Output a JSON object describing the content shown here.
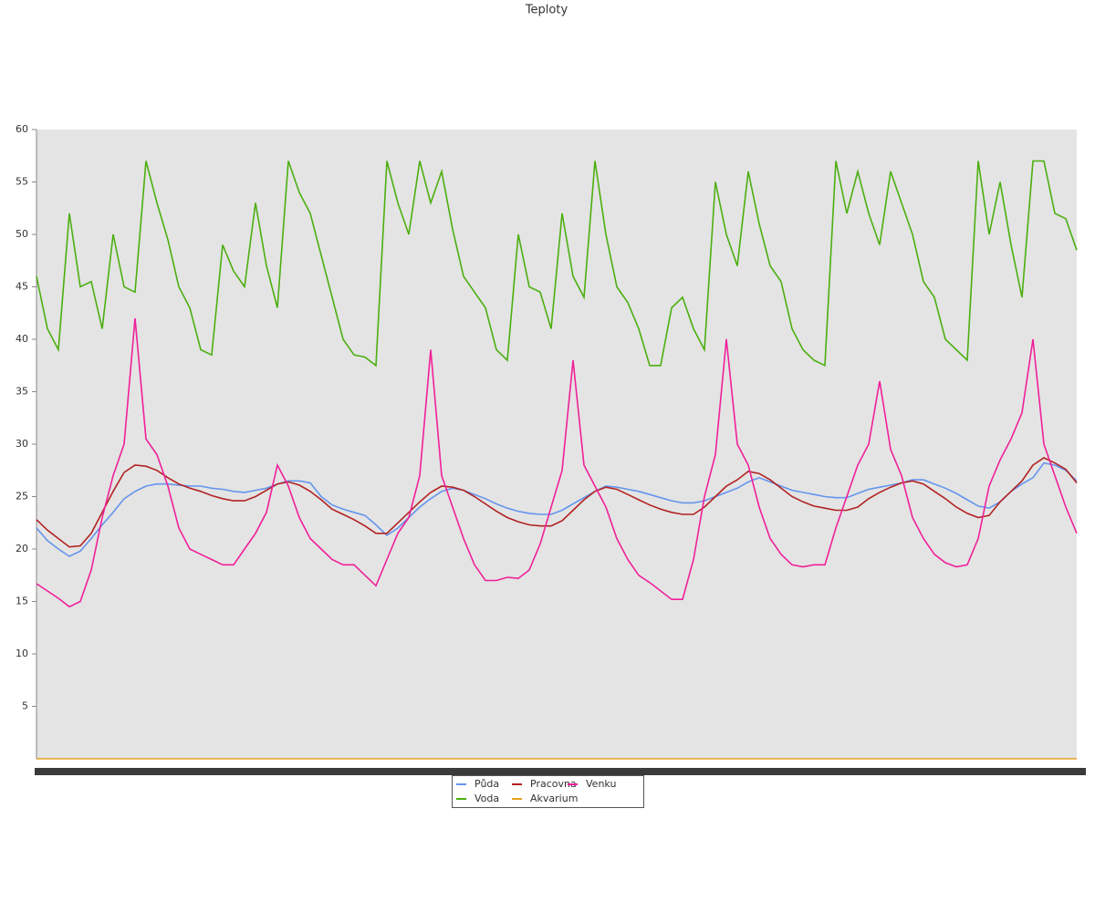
{
  "chart_data": {
    "type": "line",
    "title": "Teploty",
    "categories": [
      null,
      null,
      null,
      null,
      null,
      null,
      null,
      null,
      null,
      null,
      null,
      null,
      null,
      null,
      null,
      null,
      null,
      null,
      null,
      null,
      null,
      null,
      null,
      null,
      null,
      null,
      null,
      null,
      null,
      null,
      null,
      null,
      null,
      null,
      null,
      null,
      null,
      null,
      null,
      null,
      null,
      null,
      null,
      null,
      null,
      null,
      null,
      null,
      null,
      null,
      null,
      null,
      null,
      null,
      null,
      null,
      null,
      null,
      null,
      null,
      null,
      null,
      null,
      null,
      null,
      null,
      null,
      null,
      null,
      null,
      null,
      null,
      null,
      null,
      null,
      null,
      null,
      null,
      null,
      null,
      null,
      null,
      null,
      null,
      null,
      null,
      null,
      null,
      null,
      null,
      null,
      null,
      null,
      null,
      null,
      null
    ],
    "series": [
      {
        "name": "Půda",
        "color": "#6495ed",
        "values": [
          22,
          20.8,
          20,
          19.3,
          19.8,
          21,
          22.3,
          23.5,
          24.8,
          25.5,
          26,
          26.2,
          26.2,
          26.1,
          26,
          26,
          25.8,
          25.7,
          25.5,
          25.4,
          25.6,
          25.8,
          26.2,
          26.5,
          26.5,
          26.3,
          25,
          24.2,
          23.8,
          23.5,
          23.2,
          22.3,
          21.3,
          22,
          23,
          24,
          24.8,
          25.5,
          25.8,
          25.6,
          25.2,
          24.8,
          24.3,
          23.9,
          23.6,
          23.4,
          23.3,
          23.3,
          23.7,
          24.3,
          24.9,
          25.5,
          26,
          25.9,
          25.7,
          25.5,
          25.2,
          24.9,
          24.6,
          24.4,
          24.4,
          24.6,
          25,
          25.4,
          25.8,
          26.4,
          26.8,
          26.4,
          26,
          25.6,
          25.4,
          25.2,
          25,
          24.9,
          24.9,
          25.3,
          25.7,
          25.9,
          26.1,
          26.3,
          26.6,
          26.6,
          26.2,
          25.8,
          25.3,
          24.7,
          24.1,
          23.9,
          24.5,
          25.5,
          26.2,
          26.8,
          28.2,
          28,
          27.5,
          26.5
        ]
      },
      {
        "name": "Pracovna",
        "color": "#b22222",
        "values": [
          22.8,
          21.8,
          21,
          20.2,
          20.3,
          21.5,
          23.5,
          25.5,
          27.3,
          28,
          27.9,
          27.5,
          26.8,
          26.2,
          25.8,
          25.5,
          25.1,
          24.8,
          24.6,
          24.6,
          25,
          25.6,
          26.2,
          26.4,
          26.1,
          25.5,
          24.7,
          23.8,
          23.3,
          22.8,
          22.2,
          21.5,
          21.5,
          22.5,
          23.5,
          24.5,
          25.4,
          26,
          25.9,
          25.6,
          25,
          24.3,
          23.6,
          23,
          22.6,
          22.3,
          22.2,
          22.2,
          22.7,
          23.7,
          24.7,
          25.5,
          25.9,
          25.7,
          25.2,
          24.7,
          24.2,
          23.8,
          23.5,
          23.3,
          23.3,
          24,
          25,
          26,
          26.6,
          27.4,
          27.2,
          26.6,
          25.8,
          25,
          24.5,
          24.1,
          23.9,
          23.7,
          23.7,
          24,
          24.8,
          25.4,
          25.9,
          26.3,
          26.5,
          26.2,
          25.5,
          24.8,
          24,
          23.4,
          23,
          23.2,
          24.5,
          25.5,
          26.5,
          28,
          28.7,
          28.2,
          27.6,
          26.3
        ]
      },
      {
        "name": "Venku",
        "color": "#f0209a",
        "values": [
          16.7,
          16,
          15.3,
          14.5,
          15,
          18,
          23,
          27,
          30,
          42,
          30.5,
          29,
          26,
          22,
          20,
          19.5,
          19,
          18.5,
          18.5,
          20,
          21.5,
          23.5,
          28,
          26,
          23,
          21,
          20,
          19,
          18.5,
          18.5,
          17.5,
          16.5,
          19,
          21.5,
          23,
          27,
          39,
          27,
          24,
          21,
          18.5,
          17,
          17,
          17.3,
          17.2,
          18,
          20.5,
          24,
          27.5,
          38,
          28,
          26,
          24,
          21,
          19,
          17.5,
          16.8,
          16,
          15.2,
          15.2,
          19,
          25,
          29,
          40,
          30,
          28,
          24,
          21,
          19.5,
          18.5,
          18.3,
          18.5,
          18.5,
          22,
          25,
          28,
          30,
          36,
          29.5,
          27,
          23,
          21,
          19.5,
          18.7,
          18.3,
          18.5,
          21,
          26,
          28.5,
          30.5,
          33,
          40,
          30,
          27,
          24,
          21.5
        ]
      },
      {
        "name": "Voda",
        "color": "#4caf10",
        "values": [
          46,
          41,
          39,
          52,
          45,
          45.5,
          41,
          50,
          45,
          44.5,
          57,
          53,
          49.5,
          45,
          43,
          39,
          38.5,
          49,
          46.5,
          45,
          53,
          47,
          43,
          57,
          54,
          52,
          48,
          44,
          40,
          38.5,
          38.3,
          37.5,
          57,
          53,
          50,
          57,
          53,
          56,
          50.5,
          46,
          44.5,
          43,
          39,
          38,
          50,
          45,
          44.5,
          41,
          52,
          46,
          44,
          57,
          50,
          45,
          43.5,
          41,
          37.5,
          37.5,
          43,
          44,
          41,
          39,
          55,
          50,
          47,
          56,
          51,
          47,
          45.5,
          41,
          39,
          38,
          37.5,
          57,
          52,
          56,
          52,
          49,
          56,
          53,
          50,
          45.5,
          44,
          40,
          39,
          38,
          57,
          50,
          55,
          49,
          44,
          57,
          57,
          52,
          51.5,
          48.5
        ]
      },
      {
        "name": "Akvarium",
        "color": "#e8a020",
        "values": [
          0,
          0,
          0,
          0,
          0,
          0,
          0,
          0,
          0,
          0,
          0,
          0,
          0,
          0,
          0,
          0,
          0,
          0,
          0,
          0,
          0,
          0,
          0,
          0,
          0,
          0,
          0,
          0,
          0,
          0,
          0,
          0,
          0,
          0,
          0,
          0,
          0,
          0,
          0,
          0,
          0,
          0,
          0,
          0,
          0,
          0,
          0,
          0,
          0,
          0,
          0,
          0,
          0,
          0,
          0,
          0,
          0,
          0,
          0,
          0,
          0,
          0,
          0,
          0,
          0,
          0,
          0,
          0,
          0,
          0,
          0,
          0,
          0,
          0,
          0,
          0,
          0,
          0,
          0,
          0,
          0,
          0,
          0,
          0,
          0,
          0,
          0,
          0,
          0,
          0,
          0,
          0,
          0,
          0,
          0,
          0
        ]
      }
    ],
    "ylim": [
      0,
      60
    ],
    "yticks": [
      5,
      10,
      15,
      20,
      25,
      30,
      35,
      40,
      45,
      50,
      55,
      60
    ],
    "grid": false
  }
}
